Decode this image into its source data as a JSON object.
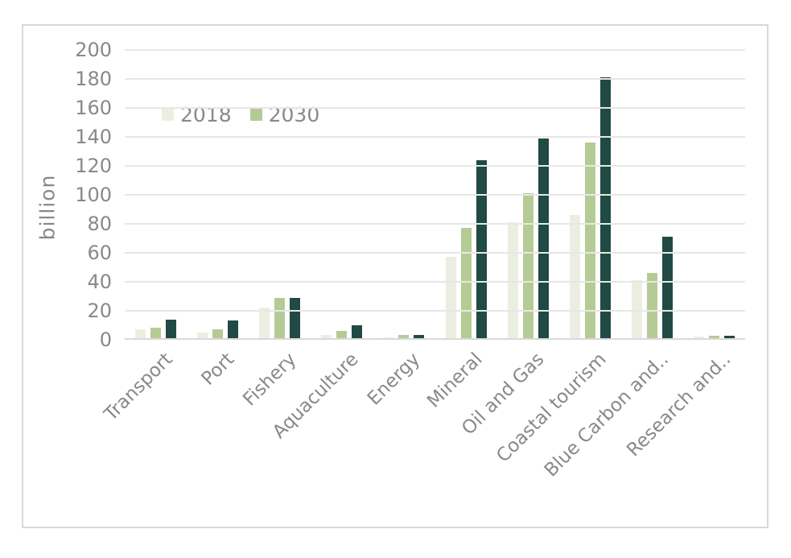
{
  "chart_data": {
    "type": "bar",
    "title": "",
    "ylabel": "billion",
    "xlabel": "",
    "ylim": [
      0,
      200
    ],
    "yticks": [
      0,
      20,
      40,
      60,
      80,
      100,
      120,
      140,
      160,
      180,
      200
    ],
    "grid": "horizontal",
    "legend_position": "inside-top-left",
    "legend_labels": [
      "2018",
      "2030"
    ],
    "categories": [
      "Transport",
      "Port",
      "Fishery",
      "Aquaculture",
      "Energy",
      "Mineral",
      "Oil and Gas",
      "Coastal tourism",
      "Blue Carbon and..",
      "Research and.."
    ],
    "series": [
      {
        "name": "2018",
        "color": "#ebefe2",
        "values": [
          6,
          4,
          21,
          2.5,
          0.5,
          56,
          80,
          85,
          40,
          1
        ]
      },
      {
        "name": "2030",
        "color": "#b5cb95",
        "values": [
          7,
          6,
          28,
          5,
          2,
          76,
          100,
          135,
          45,
          1.5
        ]
      },
      {
        "name": "",
        "color": "#204a43",
        "values": [
          13,
          12,
          28,
          9,
          2.5,
          123,
          138,
          180,
          70,
          1.5
        ]
      }
    ],
    "colors": {
      "gridline": "#e7e7e7",
      "axis_line": "#d9d9d9",
      "frame_border": "#d9d9d9",
      "text": "#898989",
      "background": "#ffffff"
    }
  }
}
